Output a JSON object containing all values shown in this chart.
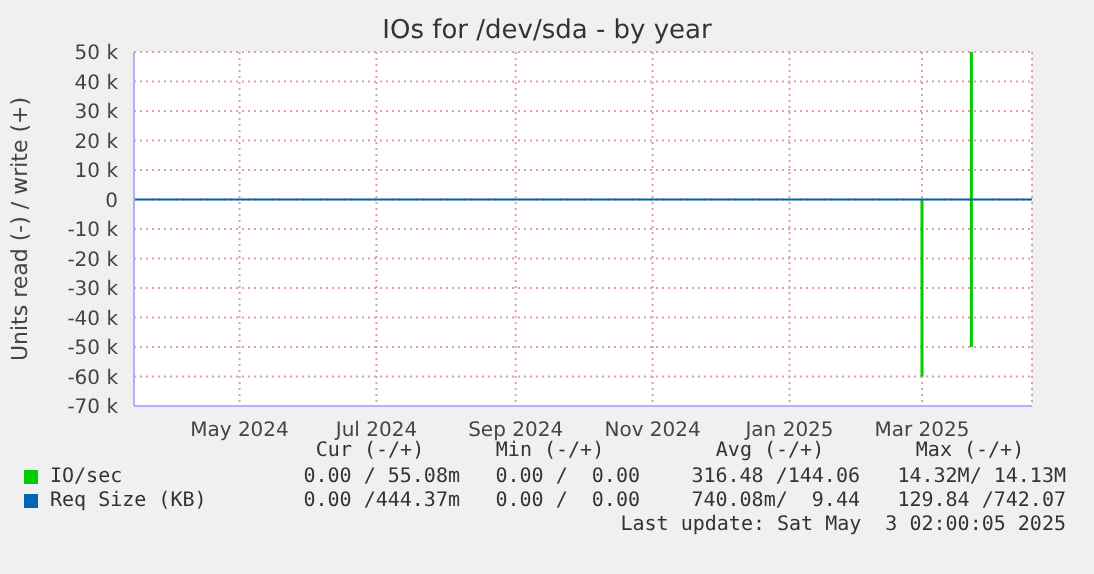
{
  "chart_data": {
    "type": "line",
    "title": "IOs for /dev/sda - by year",
    "ylabel": "Units read (-) / write (+)",
    "xlim": [
      "2024-03-29",
      "2025-05-03"
    ],
    "xticks": [
      {
        "value": "2024-05-15",
        "label": "May 2024"
      },
      {
        "value": "2024-07-15",
        "label": "Jul 2024"
      },
      {
        "value": "2024-09-15",
        "label": "Sep 2024"
      },
      {
        "value": "2024-11-15",
        "label": "Nov 2024"
      },
      {
        "value": "2025-01-15",
        "label": "Jan 2025"
      },
      {
        "value": "2025-03-15",
        "label": "Mar 2025"
      }
    ],
    "ylim": [
      -70000,
      50000
    ],
    "yticks": [
      {
        "value": -70000,
        "label": "-70 k"
      },
      {
        "value": -60000,
        "label": "-60 k"
      },
      {
        "value": -50000,
        "label": "-50 k"
      },
      {
        "value": -40000,
        "label": "-40 k"
      },
      {
        "value": -30000,
        "label": "-30 k"
      },
      {
        "value": -20000,
        "label": "-20 k"
      },
      {
        "value": -10000,
        "label": "-10 k"
      },
      0,
      {
        "value": 10000,
        "label": "10 k"
      },
      {
        "value": 20000,
        "label": "20 k"
      },
      {
        "value": 30000,
        "label": "30 k"
      },
      {
        "value": 40000,
        "label": "40 k"
      },
      {
        "value": 50000,
        "label": "50 k"
      }
    ],
    "grid": true,
    "legend": "bottom",
    "series": [
      {
        "name": "IO/sec",
        "color": "#00cc00",
        "x": [
          "2025-03-15",
          "2025-03-15",
          "2025-03-20",
          "2025-04-06",
          "2025-04-06"
        ],
        "values": [
          0,
          -60000,
          null,
          50000,
          -50000
        ]
      },
      {
        "name": "Req Size (KB)",
        "color": "#0066b3",
        "x": [
          "2024-03-29",
          "2025-05-03"
        ],
        "values": [
          0,
          0
        ]
      }
    ],
    "annotations": [
      "Cur (-/+)",
      "Min (-/+)",
      "Avg (-/+)",
      "Max (-/+)",
      "0.00 / 55.08m",
      "0.00 /  0.00",
      "316.48 /144.06",
      "14.32M/ 14.13M",
      "0.00 /444.37m",
      "0.00 /  0.00",
      "740.08m/  9.44",
      "129.84 /742.07",
      "Last update: Sat May  3 02:00:05 2025"
    ]
  }
}
